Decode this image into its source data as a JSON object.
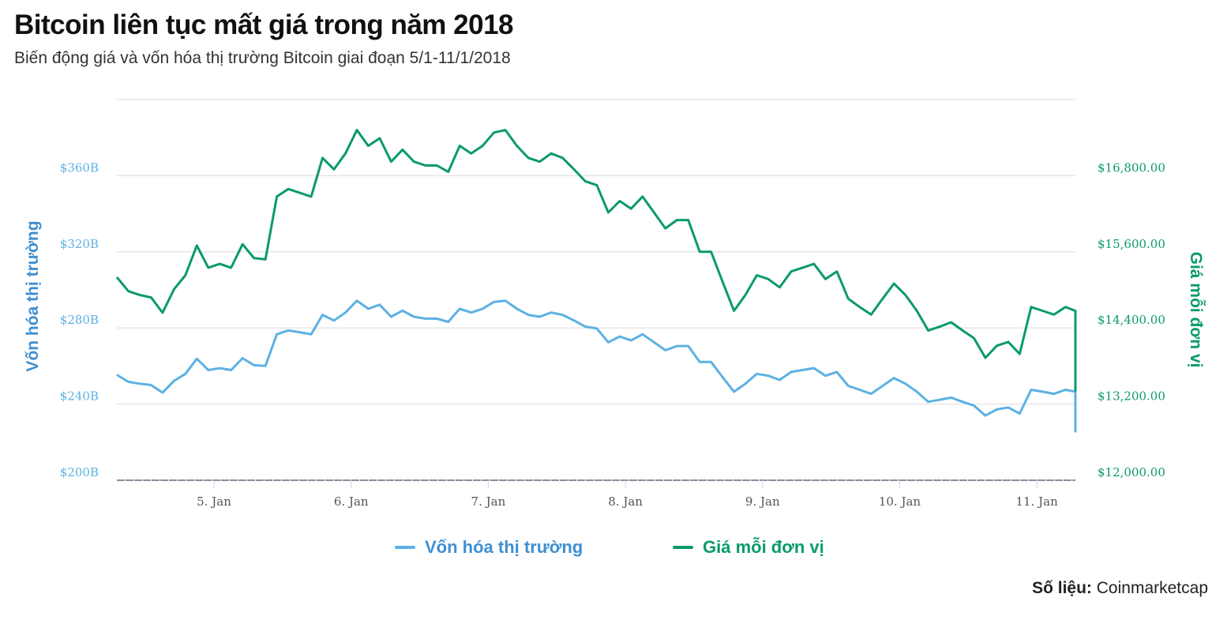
{
  "title": "Bitcoin liên tục mất giá trong năm 2018",
  "subtitle": "Biến động giá và vốn hóa thị trường Bitcoin giai đoạn 5/1-11/1/2018",
  "source_label": "Số liệu:",
  "source_value": "Coinmarketcap",
  "colors": {
    "market_cap": "#5cb1e3",
    "price": "#0b9a6c",
    "left_axis_title": "#3f8fd2",
    "grid": "#e6e6e6"
  },
  "chart_data": {
    "type": "line",
    "grid": true,
    "legend_placement": "bottom-center",
    "x_start": "2018-01-04 07:00",
    "x_interval_hours": 2,
    "xlim": [
      "2018-01-04 07:00",
      "2018-01-11 06:45"
    ],
    "x_ticks": [
      "5. Jan",
      "6. Jan",
      "7. Jan",
      "8. Jan",
      "9. Jan",
      "10. Jan",
      "11. Jan"
    ],
    "y_left": {
      "label": "Vốn hóa thị trường",
      "ticks": [
        "$200B",
        "$240B",
        "$280B",
        "$320B",
        "$360B"
      ],
      "ylim": [
        200,
        400
      ],
      "unit": "billion USD"
    },
    "y_right": {
      "label": "Giá mỗi đơn vị",
      "ticks": [
        "$12,000.00",
        "$13,200.00",
        "$14,400.00",
        "$15,600.00",
        "$16,800.00"
      ],
      "ylim": [
        12000,
        18000
      ],
      "unit": "USD"
    },
    "series": [
      {
        "name": "Vốn hóa thị trường",
        "axis": "left",
        "values": [
          255.4,
          251.7,
          250.7,
          250.0,
          246.0,
          252.2,
          255.9,
          263.8,
          257.9,
          258.9,
          257.9,
          264.1,
          260.4,
          260.1,
          276.7,
          278.7,
          277.7,
          276.7,
          286.9,
          283.9,
          288.1,
          294.3,
          290.1,
          292.2,
          285.9,
          289.1,
          285.9,
          284.9,
          284.9,
          283.2,
          290.1,
          288.1,
          290.1,
          293.7,
          294.3,
          290.1,
          286.9,
          285.9,
          288.1,
          286.9,
          283.9,
          280.7,
          279.7,
          272.5,
          275.5,
          273.5,
          276.7,
          272.5,
          268.3,
          270.5,
          270.5,
          262.1,
          262.1,
          254.2,
          246.5,
          250.7,
          255.9,
          254.9,
          252.7,
          256.9,
          257.9,
          258.9,
          254.9,
          256.9,
          249.6,
          247.5,
          245.4,
          249.6,
          253.7,
          250.7,
          246.5,
          241.2,
          242.3,
          243.4,
          241.2,
          239.2,
          234.0,
          237.2,
          238.2,
          235.0,
          247.5,
          246.5,
          245.4,
          247.5,
          246.5,
          238.6,
          225.1
        ]
      },
      {
        "name": "Giá mỗi đơn vị",
        "axis": "right",
        "values": [
          15200,
          14980,
          14920,
          14880,
          14640,
          15010,
          15230,
          15700,
          15350,
          15410,
          15350,
          15720,
          15500,
          15480,
          16470,
          16590,
          16530,
          16470,
          17080,
          16900,
          17150,
          17520,
          17270,
          17390,
          17020,
          17210,
          17020,
          16960,
          16960,
          16860,
          17270,
          17150,
          17270,
          17480,
          17520,
          17270,
          17080,
          17020,
          17150,
          17080,
          16900,
          16710,
          16650,
          16220,
          16400,
          16280,
          16470,
          16220,
          15970,
          16100,
          16100,
          15600,
          15600,
          15130,
          14670,
          14920,
          15230,
          15170,
          15040,
          15290,
          15350,
          15410,
          15170,
          15290,
          14860,
          14730,
          14610,
          14860,
          15100,
          14920,
          14670,
          14360,
          14420,
          14490,
          14360,
          14240,
          13930,
          14120,
          14180,
          13990,
          14730,
          14670,
          14610,
          14730,
          14670,
          14200,
          13400
        ]
      }
    ]
  }
}
